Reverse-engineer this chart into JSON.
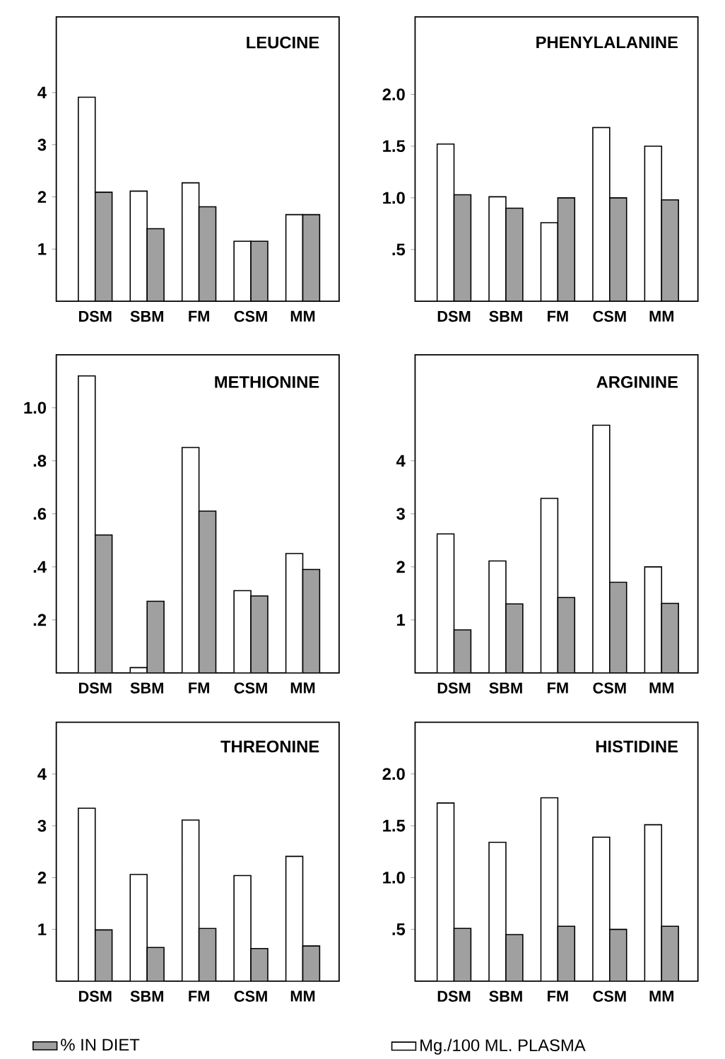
{
  "chart_data": [
    {
      "type": "bar",
      "title": "LEUCINE",
      "categories": [
        "DSM",
        "SBM",
        "FM",
        "CSM",
        "MM"
      ],
      "ylim": [
        0,
        5.45
      ],
      "yticks": [
        1,
        2,
        3,
        4
      ],
      "series": [
        {
          "color": "#ffffff",
          "values": [
            3.91,
            2.11,
            2.27,
            1.15,
            1.66
          ]
        },
        {
          "color": "#a0a0a0",
          "values": [
            2.09,
            1.39,
            1.81,
            1.15,
            1.66
          ]
        }
      ]
    },
    {
      "type": "bar",
      "title": "PHENYLALANINE",
      "categories": [
        "DSM",
        "SBM",
        "FM",
        "CSM",
        "MM"
      ],
      "ylim": [
        0,
        2.75
      ],
      "yticks": [
        {
          "value": 0.5,
          "label": ".5"
        },
        {
          "value": 1,
          "label": "1.0"
        },
        1.5,
        {
          "value": 2,
          "label": "2.0"
        }
      ],
      "series": [
        {
          "color": "#ffffff",
          "values": [
            1.52,
            1.01,
            0.76,
            1.68,
            1.5
          ]
        },
        {
          "color": "#a0a0a0",
          "values": [
            1.03,
            0.9,
            1.0,
            1.0,
            0.98
          ]
        }
      ]
    },
    {
      "type": "bar",
      "title": "METHIONINE",
      "categories": [
        "DSM",
        "SBM",
        "FM",
        "CSM",
        "MM"
      ],
      "ylim": [
        0,
        1.2
      ],
      "yticks": [
        {
          "value": 0.2,
          "label": ".2"
        },
        {
          "value": 0.4,
          "label": ".4"
        },
        {
          "value": 0.6,
          "label": ".6"
        },
        {
          "value": 0.8,
          "label": ".8"
        },
        {
          "value": 1,
          "label": "1.0"
        }
      ],
      "series": [
        {
          "color": "#ffffff",
          "values": [
            1.12,
            0.02,
            0.85,
            0.31,
            0.45
          ]
        },
        {
          "color": "#a0a0a0",
          "values": [
            0.52,
            0.27,
            0.61,
            0.29,
            0.39
          ]
        }
      ]
    },
    {
      "type": "bar",
      "title": "ARGININE",
      "categories": [
        "DSM",
        "SBM",
        "FM",
        "CSM",
        "MM"
      ],
      "ylim": [
        0,
        6
      ],
      "yticks": [
        1,
        2,
        3,
        4
      ],
      "series": [
        {
          "color": "#ffffff",
          "values": [
            2.62,
            2.11,
            3.29,
            4.67,
            2.0
          ]
        },
        {
          "color": "#a0a0a0",
          "values": [
            0.81,
            1.3,
            1.42,
            1.71,
            1.31
          ]
        }
      ]
    },
    {
      "type": "bar",
      "title": "THREONINE",
      "categories": [
        "DSM",
        "SBM",
        "FM",
        "CSM",
        "MM"
      ],
      "ylim": [
        0,
        5
      ],
      "yticks": [
        1,
        2,
        3,
        4
      ],
      "legend": "bottom",
      "series": [
        {
          "color": "#ffffff",
          "values": [
            3.34,
            2.06,
            3.11,
            2.04,
            2.41
          ]
        },
        {
          "name": "% IN DIET",
          "color": "#a0a0a0",
          "values": [
            0.99,
            0.65,
            1.02,
            0.63,
            0.68
          ]
        }
      ]
    },
    {
      "type": "bar",
      "title": "HISTIDINE",
      "categories": [
        "DSM",
        "SBM",
        "FM",
        "CSM",
        "MM"
      ],
      "ylim": [
        0,
        2.5
      ],
      "yticks": [
        {
          "value": 0.5,
          "label": ".5"
        },
        {
          "value": 1,
          "label": "1.0"
        },
        1.5,
        {
          "value": 2,
          "label": "2.0"
        }
      ],
      "legend": "bottom",
      "series": [
        {
          "name": "Mg./100 ML. PLASMA",
          "color": "#ffffff",
          "values": [
            1.72,
            1.34,
            1.77,
            1.39,
            1.51
          ]
        },
        {
          "color": "#a0a0a0",
          "values": [
            0.51,
            0.45,
            0.53,
            0.5,
            0.53
          ]
        }
      ]
    }
  ]
}
